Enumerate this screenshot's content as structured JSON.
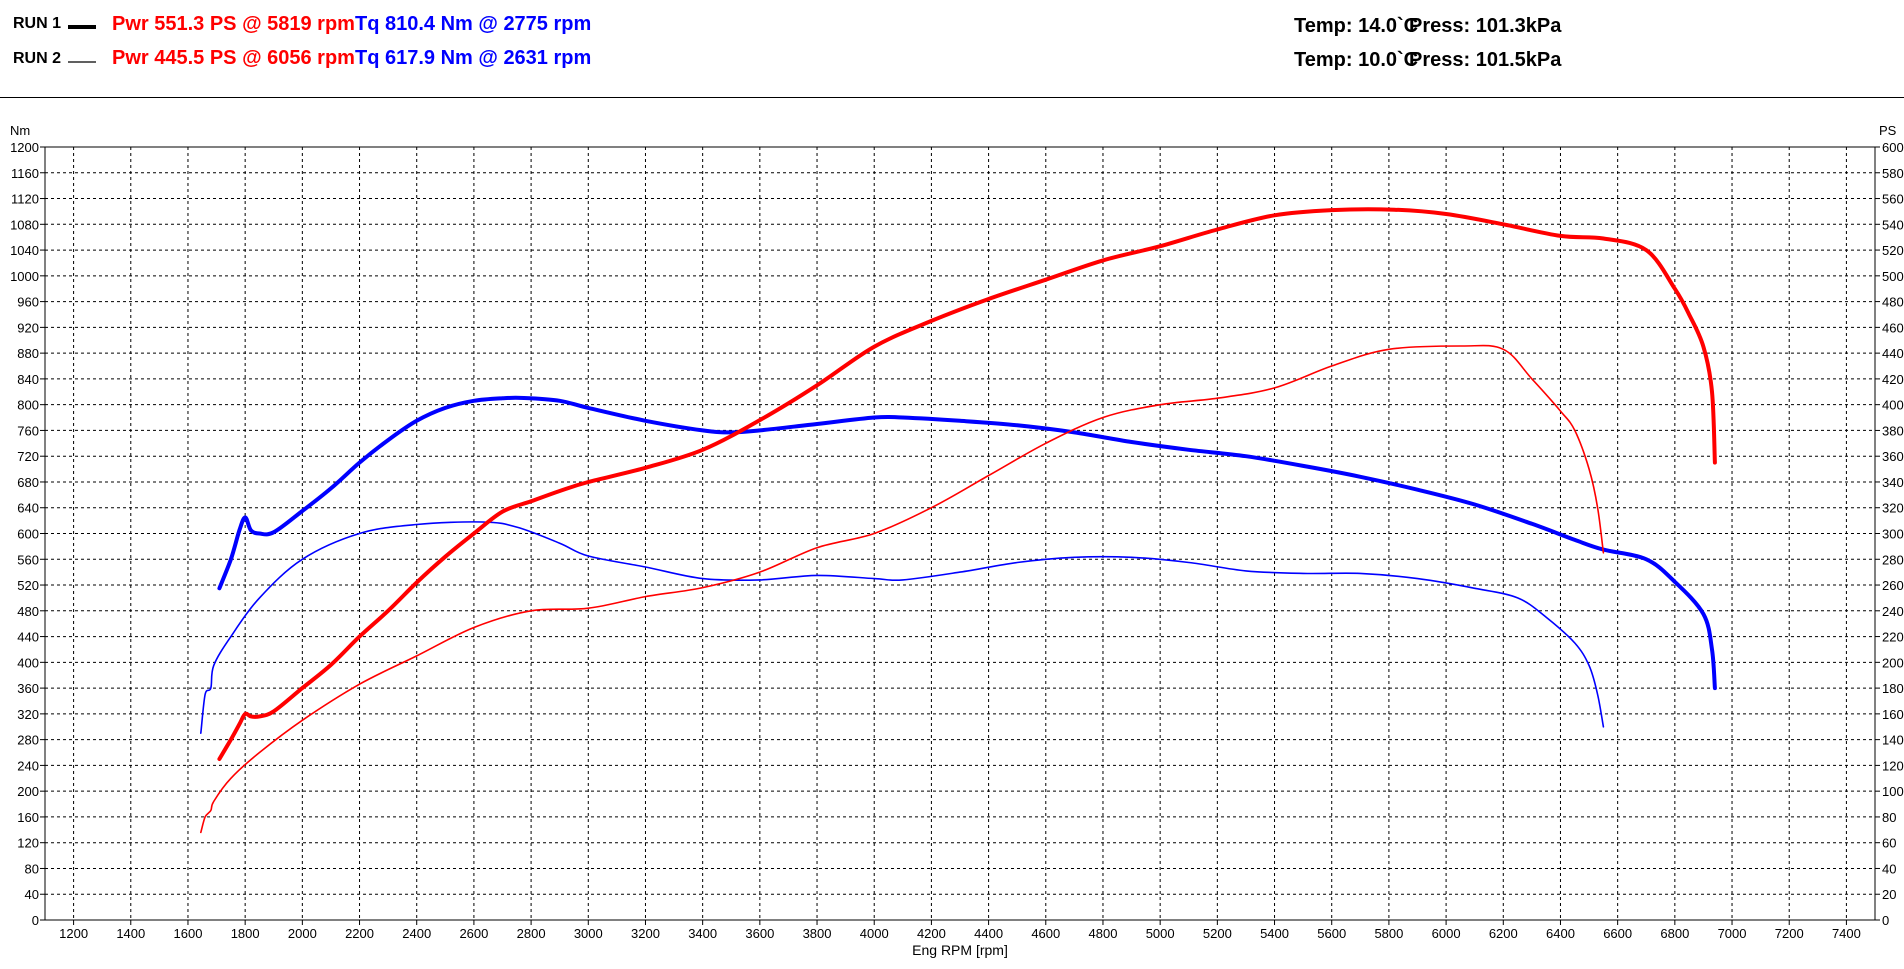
{
  "header": {
    "runs": [
      {
        "label": "RUN 1",
        "power": "Pwr  551.3 PS @ 5819 rpm",
        "torque": "Tq 810.4 Nm @ 2775 rpm",
        "temp": "Temp: 14.0`C",
        "press": "Press: 101.3kPa",
        "line_style": "thick"
      },
      {
        "label": "RUN 2",
        "power": "Pwr  445.5 PS @ 6056 rpm",
        "torque": "Tq 617.9 Nm @ 2631 rpm",
        "temp": "Temp: 10.0`C",
        "press": "Press: 101.5kPa",
        "line_style": "thin"
      }
    ]
  },
  "colors": {
    "power": "#ff0000",
    "torque": "#0000ff",
    "grid": "#000000",
    "text": "#000000"
  },
  "chart_data": {
    "type": "line",
    "xlabel": "Eng RPM [rpm]",
    "ylabel_left": "Nm",
    "ylabel_right": "PS",
    "xlim": [
      1100,
      7500
    ],
    "ylim_left": [
      0,
      1200
    ],
    "ylim_right": [
      0,
      600
    ],
    "x_ticks": [
      1200,
      1400,
      1600,
      1800,
      2000,
      2200,
      2400,
      2600,
      2800,
      3000,
      3200,
      3400,
      3600,
      3800,
      4000,
      4200,
      4400,
      4600,
      4800,
      5000,
      5200,
      5400,
      5600,
      5800,
      6000,
      6200,
      6400,
      6600,
      6800,
      7000,
      7200,
      7400
    ],
    "y_ticks_left": [
      0,
      40,
      80,
      120,
      160,
      200,
      240,
      280,
      320,
      360,
      400,
      440,
      480,
      520,
      560,
      600,
      640,
      680,
      720,
      760,
      800,
      840,
      880,
      920,
      960,
      1000,
      1040,
      1080,
      1120,
      1160,
      1200
    ],
    "y_ticks_right": [
      0,
      20,
      40,
      60,
      80,
      100,
      120,
      140,
      160,
      180,
      200,
      220,
      240,
      260,
      280,
      300,
      320,
      340,
      360,
      380,
      400,
      420,
      440,
      460,
      480,
      500,
      520,
      540,
      560,
      580,
      600
    ],
    "grid": true,
    "series": [
      {
        "name": "RUN 1 Tq",
        "quantity": "torque",
        "axis": "left",
        "run": "RUN 1",
        "weight": "thick",
        "points": [
          [
            1710,
            515
          ],
          [
            1750,
            560
          ],
          [
            1780,
            605
          ],
          [
            1800,
            625
          ],
          [
            1820,
            605
          ],
          [
            1850,
            600
          ],
          [
            1900,
            602
          ],
          [
            2000,
            635
          ],
          [
            2100,
            670
          ],
          [
            2200,
            710
          ],
          [
            2300,
            745
          ],
          [
            2400,
            775
          ],
          [
            2500,
            795
          ],
          [
            2600,
            806
          ],
          [
            2700,
            810
          ],
          [
            2775,
            810.4
          ],
          [
            2900,
            806
          ],
          [
            3000,
            795
          ],
          [
            3200,
            775
          ],
          [
            3400,
            760
          ],
          [
            3500,
            757
          ],
          [
            3600,
            760
          ],
          [
            3800,
            770
          ],
          [
            4000,
            780
          ],
          [
            4100,
            780
          ],
          [
            4300,
            775
          ],
          [
            4500,
            768
          ],
          [
            4700,
            757
          ],
          [
            4900,
            742
          ],
          [
            5100,
            730
          ],
          [
            5300,
            720
          ],
          [
            5500,
            705
          ],
          [
            5700,
            688
          ],
          [
            5900,
            668
          ],
          [
            6100,
            645
          ],
          [
            6300,
            615
          ],
          [
            6450,
            590
          ],
          [
            6550,
            575
          ],
          [
            6700,
            560
          ],
          [
            6800,
            525
          ],
          [
            6900,
            475
          ],
          [
            6930,
            420
          ],
          [
            6940,
            360
          ]
        ]
      },
      {
        "name": "RUN 2 Tq",
        "quantity": "torque",
        "axis": "left",
        "run": "RUN 2",
        "weight": "thin",
        "points": [
          [
            1645,
            290
          ],
          [
            1660,
            350
          ],
          [
            1680,
            360
          ],
          [
            1690,
            395
          ],
          [
            1750,
            440
          ],
          [
            1850,
            500
          ],
          [
            2000,
            560
          ],
          [
            2200,
            600
          ],
          [
            2400,
            614
          ],
          [
            2631,
            617.9
          ],
          [
            2750,
            610
          ],
          [
            2900,
            585
          ],
          [
            3000,
            565
          ],
          [
            3200,
            548
          ],
          [
            3400,
            530
          ],
          [
            3600,
            528
          ],
          [
            3800,
            535
          ],
          [
            4000,
            530
          ],
          [
            4100,
            528
          ],
          [
            4300,
            540
          ],
          [
            4500,
            555
          ],
          [
            4700,
            563
          ],
          [
            4900,
            563
          ],
          [
            5100,
            555
          ],
          [
            5300,
            542
          ],
          [
            5500,
            538
          ],
          [
            5700,
            538
          ],
          [
            5900,
            530
          ],
          [
            6100,
            515
          ],
          [
            6250,
            500
          ],
          [
            6350,
            470
          ],
          [
            6450,
            430
          ],
          [
            6500,
            395
          ],
          [
            6530,
            350
          ],
          [
            6550,
            300
          ]
        ]
      },
      {
        "name": "RUN 1 Pwr",
        "quantity": "power",
        "axis": "right",
        "run": "RUN 1",
        "weight": "thick",
        "points": [
          [
            1710,
            125
          ],
          [
            1750,
            140
          ],
          [
            1780,
            152
          ],
          [
            1800,
            160
          ],
          [
            1820,
            158
          ],
          [
            1850,
            158
          ],
          [
            1900,
            162
          ],
          [
            2000,
            180
          ],
          [
            2100,
            198
          ],
          [
            2200,
            220
          ],
          [
            2300,
            240
          ],
          [
            2400,
            262
          ],
          [
            2500,
            282
          ],
          [
            2600,
            300
          ],
          [
            2700,
            317
          ],
          [
            2800,
            325
          ],
          [
            2900,
            333
          ],
          [
            3000,
            340
          ],
          [
            3200,
            351
          ],
          [
            3400,
            365
          ],
          [
            3600,
            388
          ],
          [
            3800,
            415
          ],
          [
            4000,
            445
          ],
          [
            4200,
            465
          ],
          [
            4400,
            482
          ],
          [
            4600,
            497
          ],
          [
            4800,
            512
          ],
          [
            5000,
            523
          ],
          [
            5200,
            536
          ],
          [
            5400,
            547
          ],
          [
            5600,
            551
          ],
          [
            5819,
            551.3
          ],
          [
            6000,
            548
          ],
          [
            6200,
            540
          ],
          [
            6400,
            531
          ],
          [
            6550,
            529
          ],
          [
            6700,
            520
          ],
          [
            6800,
            490
          ],
          [
            6850,
            470
          ],
          [
            6900,
            445
          ],
          [
            6930,
            410
          ],
          [
            6940,
            355
          ]
        ]
      },
      {
        "name": "RUN 2 Pwr",
        "quantity": "power",
        "axis": "right",
        "run": "RUN 2",
        "weight": "thin",
        "points": [
          [
            1645,
            68
          ],
          [
            1660,
            80
          ],
          [
            1680,
            85
          ],
          [
            1690,
            92
          ],
          [
            1750,
            110
          ],
          [
            1850,
            130
          ],
          [
            2000,
            155
          ],
          [
            2200,
            183
          ],
          [
            2400,
            205
          ],
          [
            2600,
            227
          ],
          [
            2800,
            240
          ],
          [
            3000,
            242
          ],
          [
            3200,
            251
          ],
          [
            3400,
            258
          ],
          [
            3600,
            270
          ],
          [
            3800,
            289
          ],
          [
            4000,
            300
          ],
          [
            4200,
            320
          ],
          [
            4400,
            345
          ],
          [
            4600,
            370
          ],
          [
            4800,
            390
          ],
          [
            5000,
            400
          ],
          [
            5200,
            405
          ],
          [
            5400,
            413
          ],
          [
            5600,
            430
          ],
          [
            5800,
            443
          ],
          [
            6056,
            445.5
          ],
          [
            6200,
            443
          ],
          [
            6300,
            420
          ],
          [
            6400,
            395
          ],
          [
            6450,
            380
          ],
          [
            6500,
            350
          ],
          [
            6530,
            320
          ],
          [
            6550,
            285
          ]
        ]
      }
    ]
  }
}
